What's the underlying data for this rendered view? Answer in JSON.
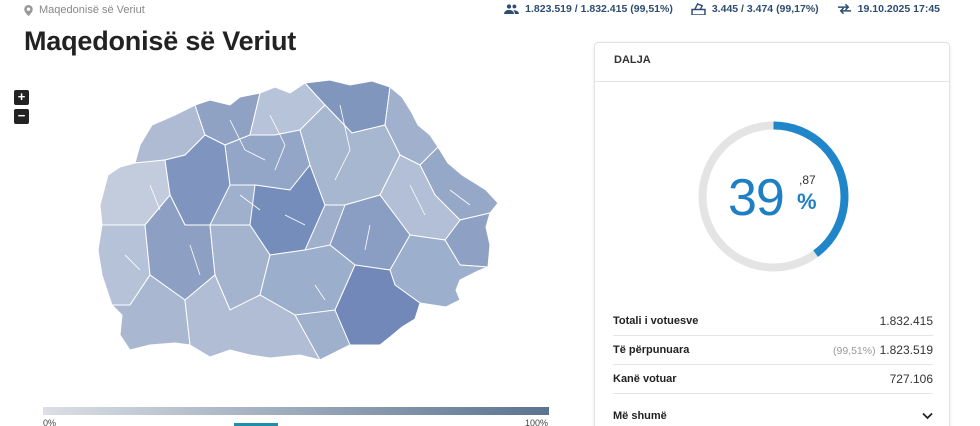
{
  "breadcrumb": {
    "label": "Maqedonisë së Veriut"
  },
  "stats": {
    "voters": "1.823.519 / 1.832.415 (99,51%)",
    "stations": "3.445 / 3.474 (99,17%)",
    "updated": "19.10.2025 17:45"
  },
  "page_title": "Maqedonisë së Veriut",
  "zoom": {
    "in_label": "+",
    "out_label": "−"
  },
  "legend": {
    "min": "0%",
    "max": "100%",
    "low_color": "#dcdfe4",
    "high_color": "#5a7391"
  },
  "card": {
    "title": "DALJA",
    "turnout_int": "39",
    "turnout_dec": ",87",
    "turnout_sign": "%",
    "turnout_value": 0.3987,
    "accent_color": "#1f87c9",
    "rows": [
      {
        "label": "Totali i votuesve",
        "sub": "",
        "value": "1.832.415"
      },
      {
        "label": "Të përpunuara",
        "sub": "(99,51%)",
        "value": "1.823.519"
      },
      {
        "label": "Kanë votuar",
        "sub": "",
        "value": "727.106"
      }
    ],
    "more_label": "Më shumë"
  }
}
